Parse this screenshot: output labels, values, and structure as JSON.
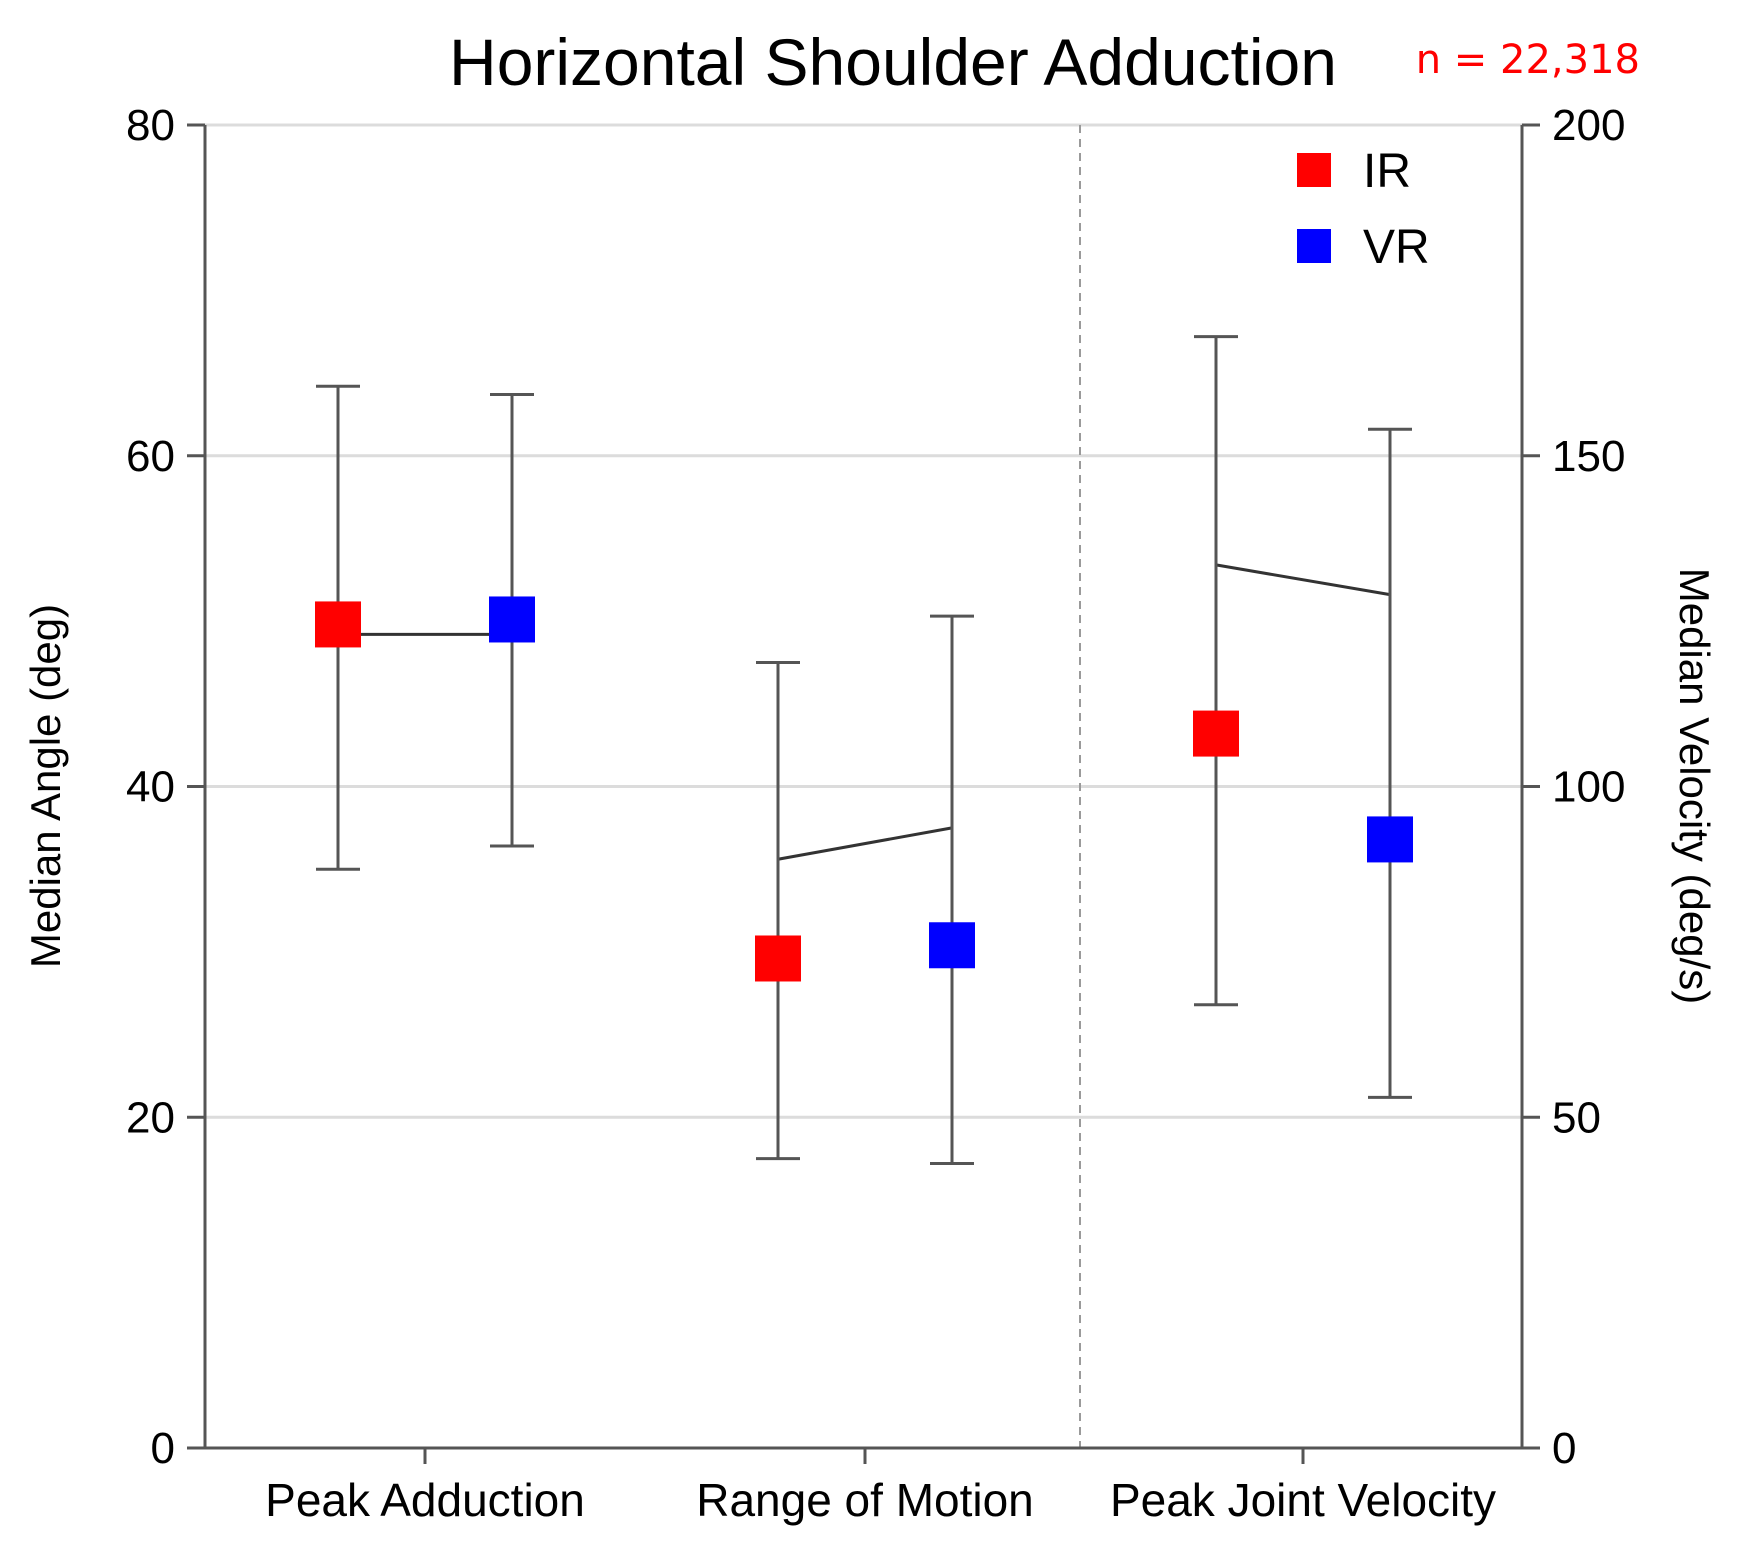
{
  "chart_data": {
    "type": "scatter",
    "title": "Horizontal Shoulder Adduction",
    "annotation": "n = 22,318",
    "xlabel": "",
    "ylabel": "Median Angle (deg)",
    "y2label": "Median Velocity (deg/s)",
    "categories": [
      "Peak Adduction",
      "Range of Motion",
      "Peak Joint Velocity"
    ],
    "ylim": [
      0,
      80
    ],
    "y2lim": [
      0,
      200
    ],
    "yticks": [
      "0",
      "20",
      "40",
      "60",
      "80"
    ],
    "y2ticks": [
      "0",
      "50",
      "100",
      "150",
      "200"
    ],
    "grid": true,
    "legend_position": "top-right",
    "series": [
      {
        "name": "IR",
        "color": "#ff0000",
        "values": [
          49.8,
          29.6,
          108
        ],
        "axis": [
          "left",
          "left",
          "right"
        ],
        "err_low": [
          35,
          17.5,
          67
        ],
        "err_high": [
          64.2,
          47.5,
          168
        ]
      },
      {
        "name": "VR",
        "color": "#0000ff",
        "values": [
          50.1,
          30.4,
          92
        ],
        "axis": [
          "left",
          "left",
          "right"
        ],
        "err_low": [
          36.4,
          17.2,
          53
        ],
        "err_high": [
          63.7,
          50.3,
          154
        ]
      }
    ],
    "connector_lines": [
      {
        "category": "Peak Adduction",
        "axis": "left",
        "values": [
          49.2,
          49.2
        ]
      },
      {
        "category": "Range of Motion",
        "axis": "left",
        "values": [
          35.6,
          37.5
        ]
      },
      {
        "category": "Peak Joint Velocity",
        "axis": "right",
        "values": [
          133.5,
          129
        ]
      }
    ]
  }
}
